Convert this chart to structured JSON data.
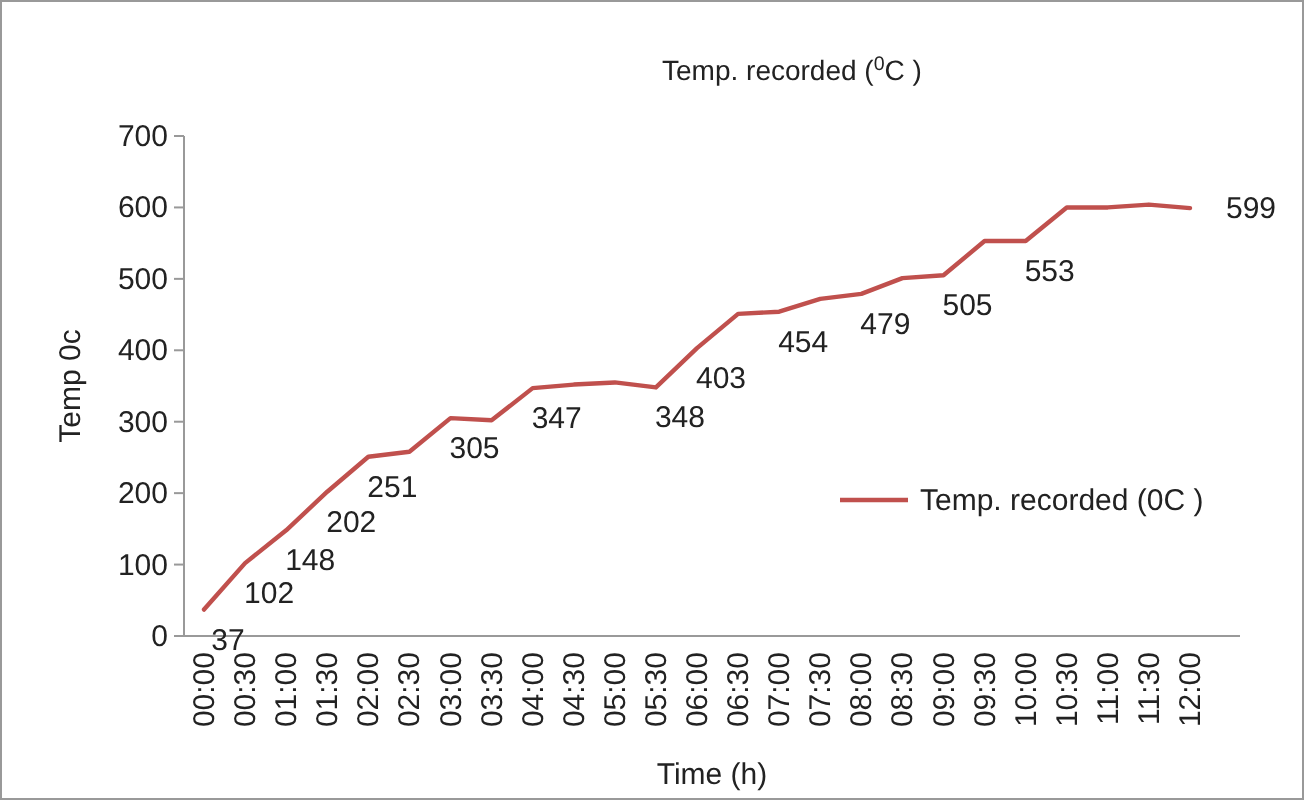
{
  "chart_data": {
    "type": "line",
    "title": "Temp. recorded ($^{0}$C )",
    "xlabel": "Time (h)",
    "ylabel": "Temp 0c",
    "categories": [
      "00:00",
      "00:30",
      "01:00",
      "01:30",
      "02:00",
      "02:30",
      "03:00",
      "03:30",
      "04:00",
      "04:30",
      "05:00",
      "05:30",
      "06:00",
      "06:30",
      "07:00",
      "07:30",
      "08:00",
      "08:30",
      "09:00",
      "09:30",
      "10:00",
      "10:30",
      "11:00",
      "11:30",
      "12:00"
    ],
    "series": [
      {
        "name": "Temp. recorded (0C )",
        "color": "#c0504d",
        "values": [
          37,
          102,
          148,
          202,
          251,
          258,
          305,
          302,
          347,
          352,
          355,
          348,
          403,
          451,
          454,
          472,
          479,
          501,
          505,
          553,
          553,
          600,
          600,
          604,
          599
        ],
        "value_labels": [
          "37",
          "102",
          "148",
          "202",
          "251",
          null,
          "305",
          null,
          "347",
          null,
          null,
          "348",
          "403",
          null,
          "454",
          null,
          "479",
          null,
          "505",
          null,
          "553",
          null,
          null,
          null,
          "599"
        ]
      }
    ],
    "ylim": [
      0,
      700
    ],
    "yticks": [
      0,
      100,
      200,
      300,
      400,
      500,
      600,
      700
    ],
    "grid": false,
    "legend": "right",
    "marker": "none",
    "line_style": "solid"
  }
}
